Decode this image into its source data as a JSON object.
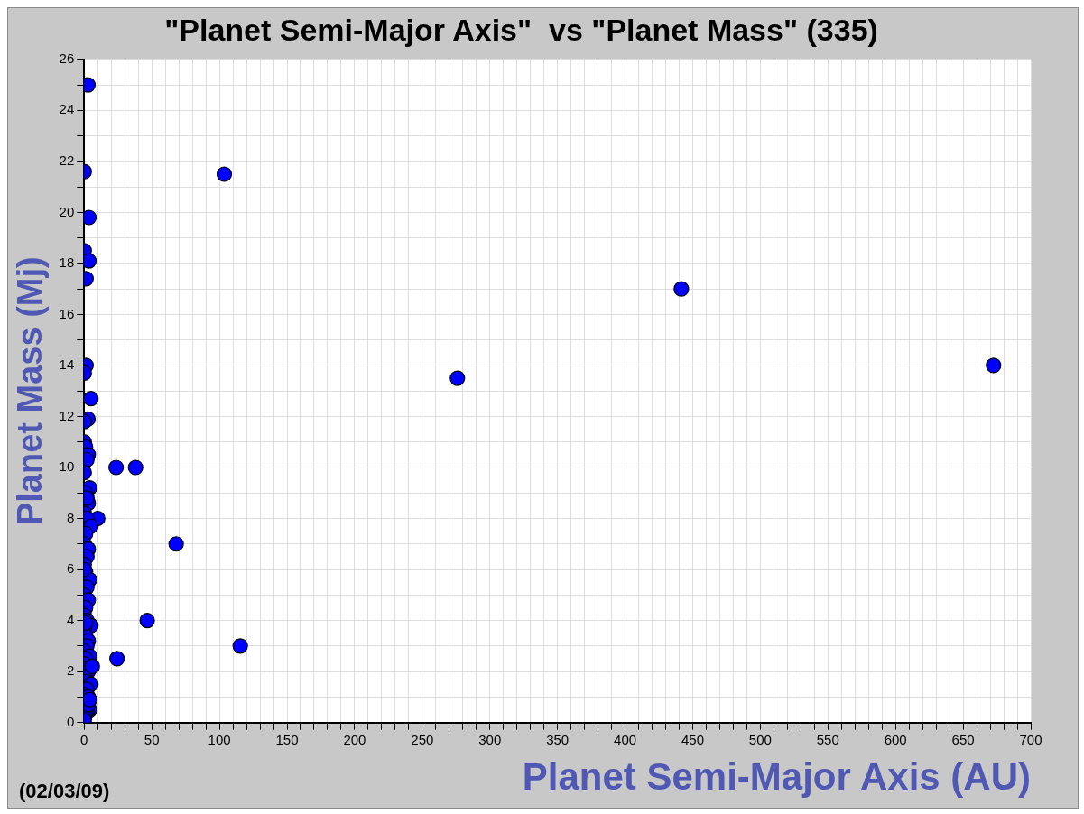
{
  "chart_data": {
    "type": "scatter",
    "title": "\"Planet Semi-Major Axis\"  vs \"Planet Mass\" (335)",
    "xlabel": "Planet Semi-Major Axis (AU)",
    "ylabel": "Planet Mass (Mj)",
    "annotations": [
      "(02/03/09)"
    ],
    "marker": "circle",
    "grid": true,
    "xlim": [
      0,
      700
    ],
    "ylim": [
      0,
      26
    ],
    "xticks": [
      0,
      {
        "value": 10,
        "label": null
      },
      {
        "value": 20,
        "label": null
      },
      {
        "value": 30,
        "label": null
      },
      {
        "value": 40,
        "label": null
      },
      50,
      {
        "value": 60,
        "label": null
      },
      {
        "value": 70,
        "label": null
      },
      {
        "value": 80,
        "label": null
      },
      {
        "value": 90,
        "label": null
      },
      100,
      {
        "value": 110,
        "label": null
      },
      {
        "value": 120,
        "label": null
      },
      {
        "value": 130,
        "label": null
      },
      {
        "value": 140,
        "label": null
      },
      150,
      {
        "value": 160,
        "label": null
      },
      {
        "value": 170,
        "label": null
      },
      {
        "value": 180,
        "label": null
      },
      {
        "value": 190,
        "label": null
      },
      200,
      {
        "value": 210,
        "label": null
      },
      {
        "value": 220,
        "label": null
      },
      {
        "value": 230,
        "label": null
      },
      {
        "value": 240,
        "label": null
      },
      250,
      {
        "value": 260,
        "label": null
      },
      {
        "value": 270,
        "label": null
      },
      {
        "value": 280,
        "label": null
      },
      {
        "value": 290,
        "label": null
      },
      300,
      {
        "value": 310,
        "label": null
      },
      {
        "value": 320,
        "label": null
      },
      {
        "value": 330,
        "label": null
      },
      {
        "value": 340,
        "label": null
      },
      350,
      {
        "value": 360,
        "label": null
      },
      {
        "value": 370,
        "label": null
      },
      {
        "value": 380,
        "label": null
      },
      {
        "value": 390,
        "label": null
      },
      400,
      {
        "value": 410,
        "label": null
      },
      {
        "value": 420,
        "label": null
      },
      {
        "value": 430,
        "label": null
      },
      {
        "value": 440,
        "label": null
      },
      450,
      {
        "value": 460,
        "label": null
      },
      {
        "value": 470,
        "label": null
      },
      {
        "value": 480,
        "label": null
      },
      {
        "value": 490,
        "label": null
      },
      500,
      {
        "value": 510,
        "label": null
      },
      {
        "value": 520,
        "label": null
      },
      {
        "value": 530,
        "label": null
      },
      {
        "value": 540,
        "label": null
      },
      550,
      {
        "value": 560,
        "label": null
      },
      {
        "value": 570,
        "label": null
      },
      {
        "value": 580,
        "label": null
      },
      {
        "value": 590,
        "label": null
      },
      600,
      {
        "value": 610,
        "label": null
      },
      {
        "value": 620,
        "label": null
      },
      {
        "value": 630,
        "label": null
      },
      {
        "value": 640,
        "label": null
      },
      650,
      {
        "value": 660,
        "label": null
      },
      {
        "value": 670,
        "label": null
      },
      {
        "value": 680,
        "label": null
      },
      {
        "value": 690,
        "label": null
      },
      700
    ],
    "yticks": [
      0,
      {
        "value": 1,
        "label": null
      },
      2,
      {
        "value": 3,
        "label": null
      },
      4,
      {
        "value": 5,
        "label": null
      },
      6,
      {
        "value": 7,
        "label": null
      },
      8,
      {
        "value": 9,
        "label": null
      },
      10,
      {
        "value": 11,
        "label": null
      },
      12,
      {
        "value": 13,
        "label": null
      },
      14,
      {
        "value": 15,
        "label": null
      },
      16,
      {
        "value": 17,
        "label": null
      },
      18,
      {
        "value": 19,
        "label": null
      },
      20,
      {
        "value": 21,
        "label": null
      },
      22,
      {
        "value": 23,
        "label": null
      },
      24,
      {
        "value": 25,
        "label": null
      },
      26
    ],
    "series": [
      {
        "color": "#0000ff",
        "x": [
          2.8,
          0,
          3.5,
          0,
          3.5,
          1.4,
          1.4,
          0,
          5,
          2.8,
          0,
          23.6,
          38,
          10,
          68,
          46.6,
          24.3,
          115.4,
          103.6,
          276,
          441.6,
          672.5,
          0,
          1,
          3,
          2,
          0,
          4,
          1,
          3,
          0,
          2,
          5,
          1,
          0,
          3,
          2,
          0,
          1,
          4,
          2,
          0,
          3,
          1,
          0,
          2,
          5,
          0,
          1,
          3,
          2,
          0,
          4,
          1,
          0,
          2,
          3,
          0,
          1,
          5,
          2,
          0,
          3,
          4,
          2,
          1,
          0,
          3,
          6,
          1,
          0,
          2,
          4,
          0
        ],
        "values": [
          25,
          21.6,
          19.8,
          18.5,
          18.1,
          17.4,
          14,
          13.7,
          12.7,
          11.9,
          11.8,
          10,
          10,
          8,
          7,
          4,
          2.5,
          3,
          21.5,
          13.5,
          17,
          14,
          11,
          10.8,
          10.5,
          10.3,
          9.8,
          9.2,
          9,
          8.6,
          8.2,
          8,
          7.7,
          7.4,
          7,
          6.8,
          6.5,
          6.2,
          5.9,
          5.6,
          5.3,
          5,
          4.8,
          4.5,
          4.2,
          4,
          3.8,
          3.6,
          3.4,
          3.2,
          3,
          2.8,
          2.6,
          2.5,
          2.3,
          2.1,
          2,
          1.8,
          1.6,
          1.5,
          1.3,
          1.1,
          1,
          0.5,
          0.4,
          0.3,
          0.2,
          0.7,
          2.2,
          3.9,
          6,
          8.8,
          0.9,
          0.1
        ]
      }
    ]
  }
}
